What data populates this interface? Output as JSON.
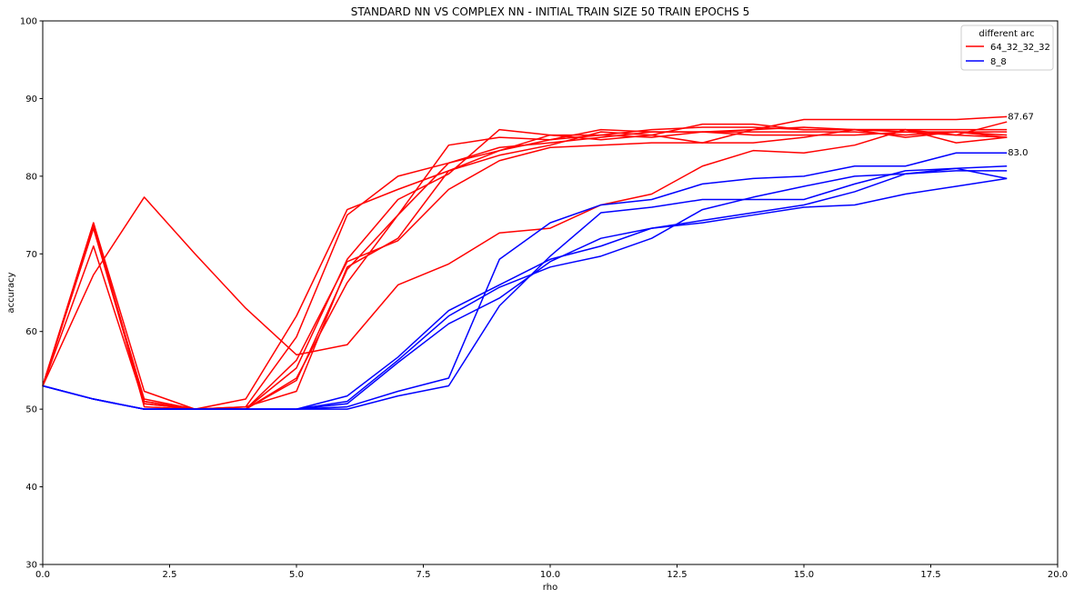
{
  "chart_data": {
    "type": "line",
    "title": "STANDARD NN VS COMPLEX NN - INITIAL TRAIN SIZE 50 TRAIN EPOCHS 5",
    "xlabel": "rho",
    "ylabel": "accuracy",
    "xlim": [
      0,
      20
    ],
    "ylim": [
      30,
      100
    ],
    "xticks": [
      "0.0",
      "2.5",
      "5.0",
      "7.5",
      "10.0",
      "12.5",
      "15.0",
      "17.5",
      "20.0"
    ],
    "yticks": [
      "30",
      "40",
      "50",
      "60",
      "70",
      "80",
      "90",
      "100"
    ],
    "grid": false,
    "legend": {
      "title": "different arc",
      "placement": "top-right",
      "entries": [
        {
          "label": "64_32_32_32",
          "color": "#ff0000"
        },
        {
          "label": "8_8",
          "color": "#0000ff"
        }
      ]
    },
    "annotations": [
      {
        "text": "87.67",
        "x": 19,
        "y": 87.67
      },
      {
        "text": "83.0",
        "x": 19,
        "y": 83.0
      }
    ],
    "x": [
      0,
      1,
      2,
      3,
      4,
      5,
      6,
      7,
      8,
      9,
      10,
      11,
      12,
      13,
      14,
      15,
      16,
      17,
      18,
      19
    ],
    "series": [
      {
        "group": "64_32_32_32",
        "color": "#ff0000",
        "values": [
          53,
          67.3,
          77.3,
          70,
          63,
          57,
          58.3,
          66,
          68.7,
          72.7,
          73.3,
          76.3,
          77.7,
          81.3,
          83.3,
          83,
          84,
          86,
          84.3,
          85
        ]
      },
      {
        "group": "64_32_32_32",
        "color": "#ff0000",
        "values": [
          53,
          74,
          52.3,
          50,
          51.3,
          62,
          75.7,
          78.3,
          80.7,
          82.7,
          84,
          85.7,
          85.3,
          86.7,
          86.7,
          86,
          86,
          85,
          85.7,
          85
        ]
      },
      {
        "group": "64_32_32_32",
        "color": "#ff0000",
        "values": [
          53,
          73.3,
          51.3,
          50,
          50.3,
          59.3,
          75,
          80,
          81.7,
          83.7,
          84.3,
          85,
          85.7,
          85.7,
          86,
          86.3,
          86,
          86,
          86,
          86
        ]
      },
      {
        "group": "64_32_32_32",
        "color": "#ff0000",
        "values": [
          53,
          71,
          50.7,
          50,
          50,
          55.3,
          69.3,
          77,
          80.3,
          86,
          85.3,
          84.7,
          85.3,
          84.3,
          84.3,
          85,
          86,
          86,
          85.3,
          85
        ]
      },
      {
        "group": "64_32_32_32",
        "color": "#ff0000",
        "values": [
          53,
          73.7,
          51,
          50,
          50,
          54,
          66.3,
          75,
          84,
          85,
          84.7,
          86,
          85.7,
          85.7,
          85.7,
          85.7,
          85.7,
          85.3,
          85.7,
          85.3
        ]
      },
      {
        "group": "64_32_32_32",
        "color": "#ff0000",
        "values": [
          53,
          74,
          50.3,
          50,
          50.3,
          52.3,
          68.3,
          72,
          80.7,
          83.3,
          85.3,
          85.3,
          85,
          85.7,
          85.3,
          85.3,
          85.3,
          85.7,
          85.7,
          85.7
        ]
      },
      {
        "group": "64_32_32_32",
        "color": "#ff0000",
        "values": [
          53,
          73.3,
          50.7,
          50,
          50,
          56.3,
          69,
          71.7,
          78.3,
          82,
          83.7,
          84,
          84.3,
          84.3,
          86,
          87.3,
          87.3,
          87.3,
          87.3,
          87.67
        ]
      },
      {
        "group": "64_32_32_32",
        "color": "#ff0000",
        "values": [
          53,
          73.7,
          51,
          50,
          50,
          53.7,
          68,
          75,
          81.7,
          83.3,
          84.7,
          85.3,
          86,
          86.3,
          86.3,
          86,
          86,
          85.7,
          85.3,
          87
        ]
      },
      {
        "group": "8_8",
        "color": "#0000ff",
        "values": [
          53,
          51.3,
          50,
          50,
          50,
          50,
          50.3,
          52.3,
          54,
          69.3,
          74,
          76.3,
          77,
          79,
          79.7,
          80,
          81.3,
          81.3,
          83,
          83.0
        ]
      },
      {
        "group": "8_8",
        "color": "#0000ff",
        "values": [
          53,
          51.3,
          50,
          50,
          50,
          50,
          51.7,
          56.7,
          62.7,
          66,
          69.3,
          71,
          73.3,
          74.3,
          75.3,
          76.3,
          78,
          80.3,
          81,
          81.3
        ]
      },
      {
        "group": "8_8",
        "color": "#0000ff",
        "values": [
          53,
          51.3,
          50,
          50,
          50,
          50,
          51,
          56.3,
          62,
          65.7,
          68.3,
          69.7,
          72,
          75.7,
          77.3,
          78.7,
          80,
          80.3,
          80.7,
          80.7
        ]
      },
      {
        "group": "8_8",
        "color": "#0000ff",
        "values": [
          53,
          51.3,
          50,
          50,
          50,
          50,
          50,
          51.7,
          53,
          63.3,
          69.7,
          75.3,
          76,
          77,
          77,
          77,
          79,
          80.7,
          81,
          79.7
        ]
      },
      {
        "group": "8_8",
        "color": "#0000ff",
        "values": [
          53,
          51.3,
          50,
          50,
          50,
          50,
          50.7,
          56,
          61,
          64.3,
          69,
          72,
          73.3,
          74,
          75,
          76,
          76.3,
          77.7,
          78.7,
          79.7
        ]
      }
    ]
  }
}
